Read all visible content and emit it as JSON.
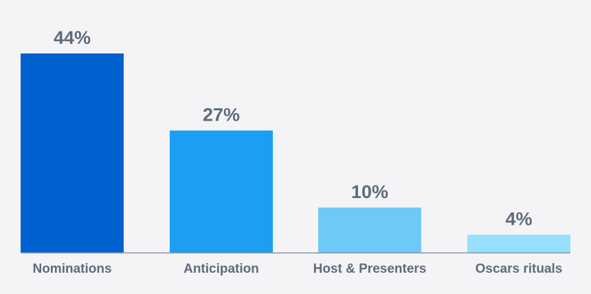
{
  "chart_data": {
    "type": "bar",
    "categories": [
      "Nominations",
      "Anticipation",
      "Host & Presenters",
      "Oscars rituals"
    ],
    "values": [
      44,
      27,
      10,
      4
    ],
    "value_labels": [
      "44%",
      "27%",
      "10%",
      "4%"
    ],
    "colors": [
      "#0062d1",
      "#1c9ff2",
      "#6ec8f8",
      "#97e0fd"
    ],
    "title": "",
    "xlabel": "",
    "ylabel": "",
    "ylim": [
      0,
      44
    ],
    "grid": false,
    "legend": "none"
  }
}
